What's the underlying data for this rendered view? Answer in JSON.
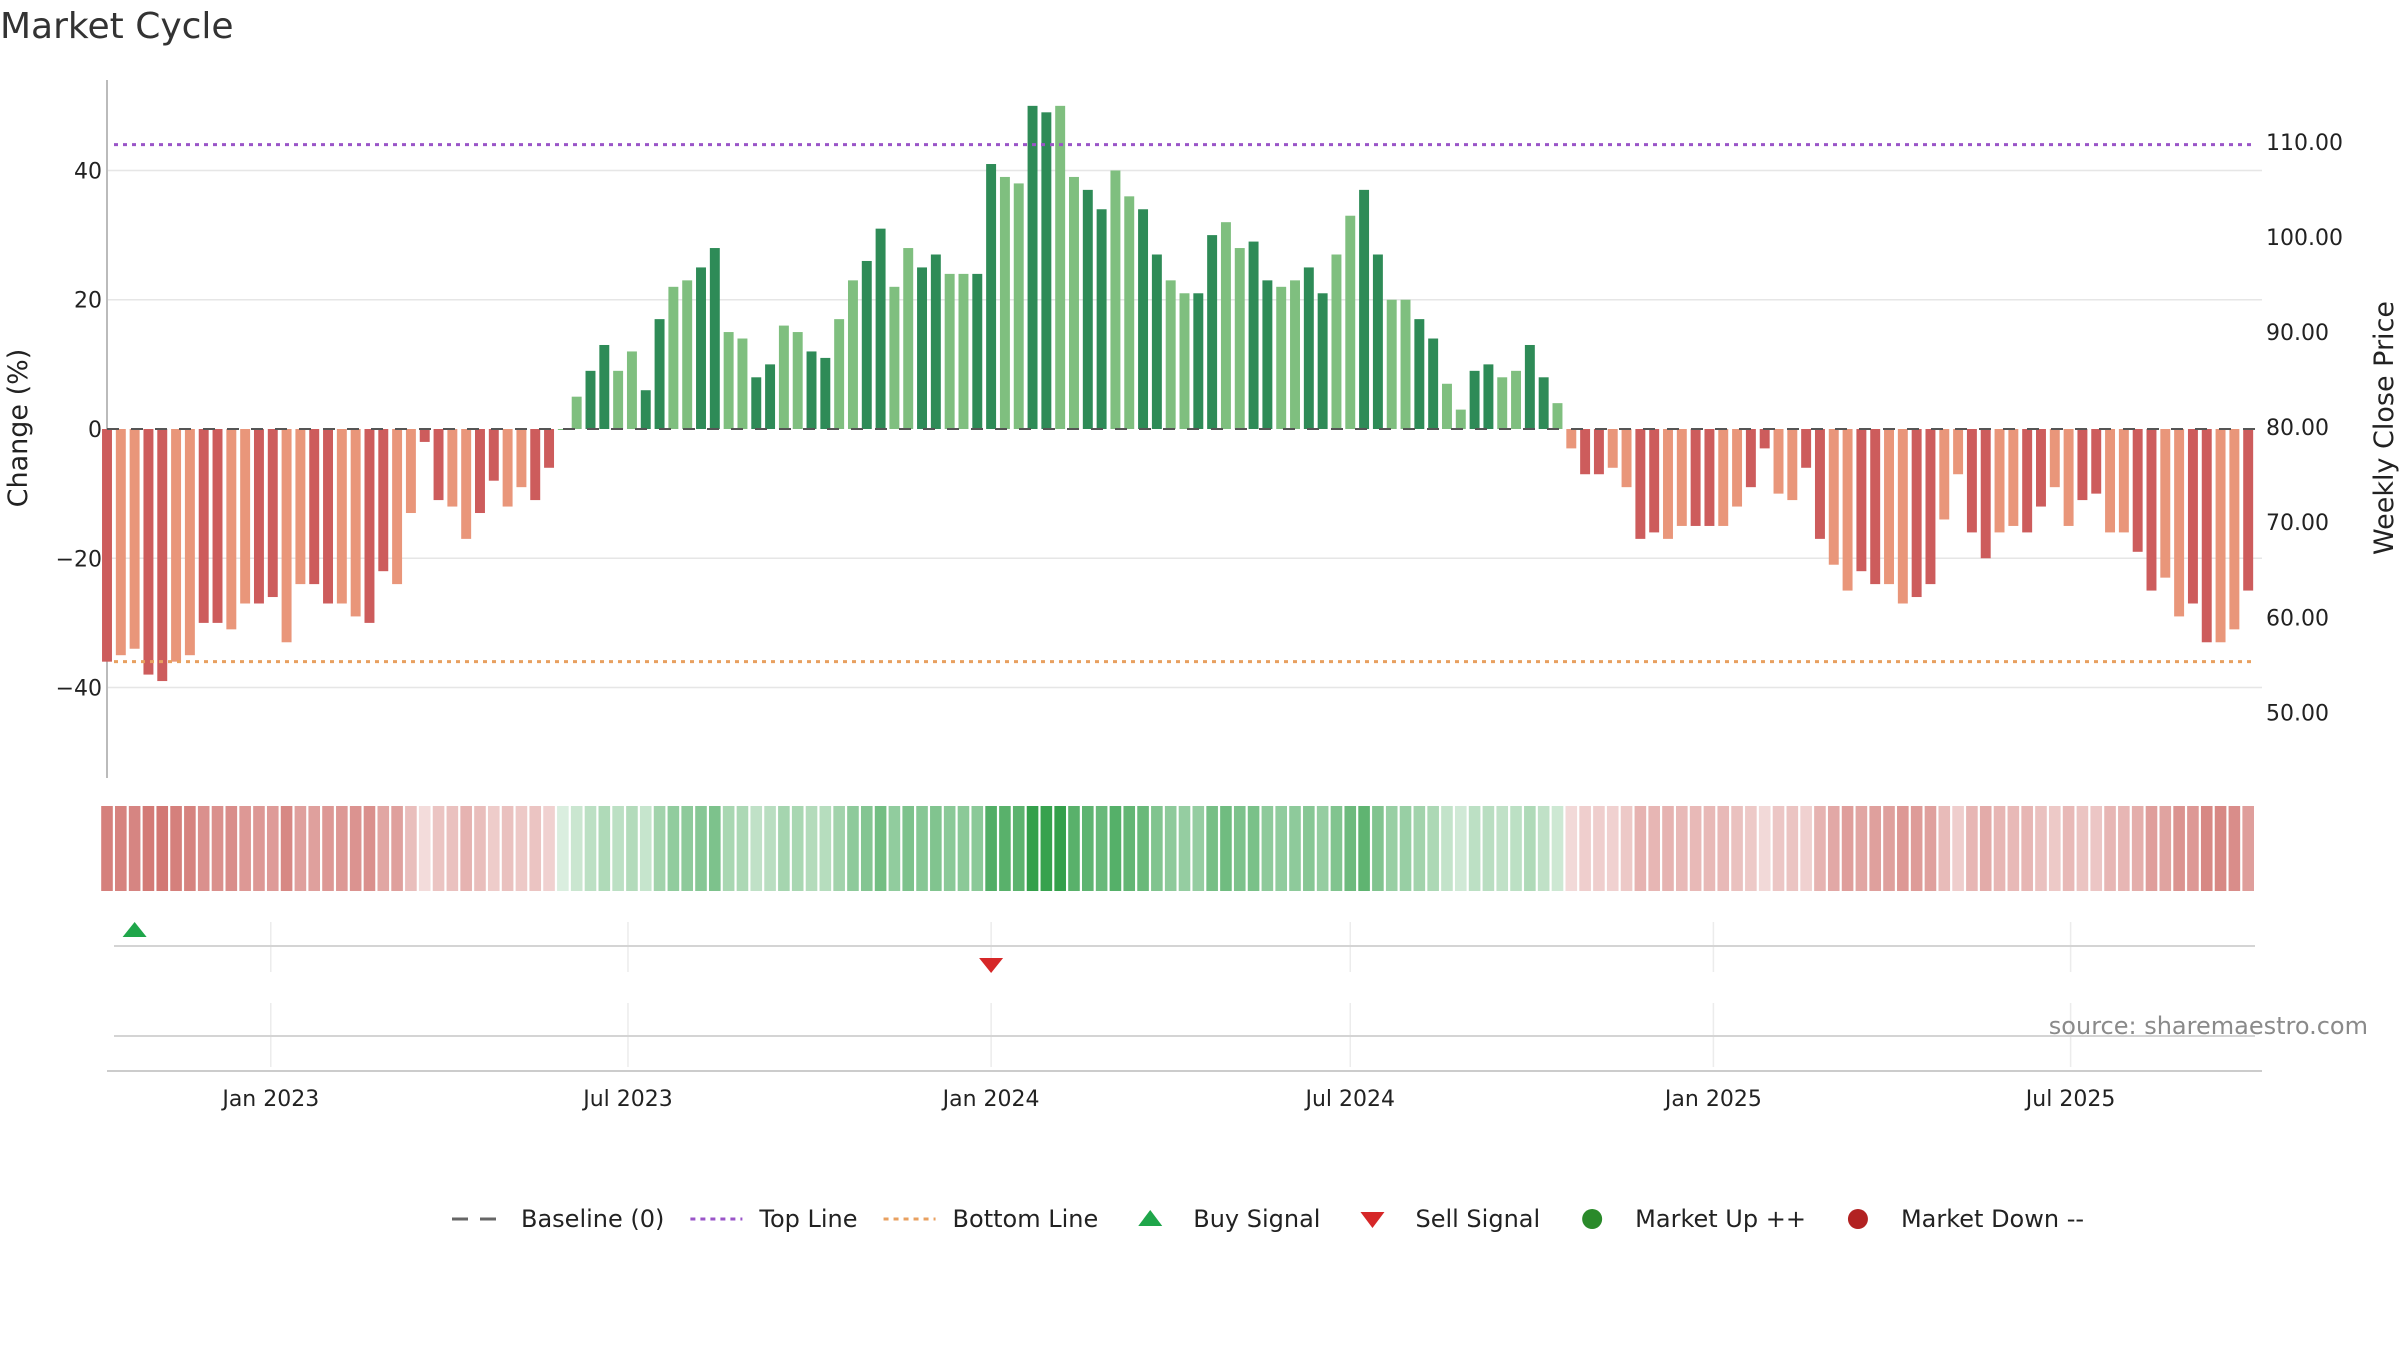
{
  "chart_data": {
    "type": "bar",
    "title": "Market Cycle",
    "ylabel_left": "Change (%)",
    "ylabel_right": "Weekly Close Price",
    "source": "source: sharemaestro.com",
    "ylim_left": [
      -54,
      54
    ],
    "ylim_right": [
      43.1,
      116.5
    ],
    "yticks_left": [
      {
        "v": 40,
        "label": "40"
      },
      {
        "v": 20,
        "label": "20"
      },
      {
        "v": 0,
        "label": "0"
      },
      {
        "v": -20,
        "label": "−20"
      },
      {
        "v": -40,
        "label": "−40"
      }
    ],
    "yticks_right": [
      {
        "v": 110,
        "label": "110.00"
      },
      {
        "v": 100,
        "label": "100.00"
      },
      {
        "v": 90,
        "label": "90.00"
      },
      {
        "v": 80,
        "label": "80.00"
      },
      {
        "v": 70,
        "label": "70.00"
      },
      {
        "v": 60,
        "label": "60.00"
      },
      {
        "v": 50,
        "label": "50.00"
      }
    ],
    "x_start": "2022-10-10",
    "x_end": "2025-10-06",
    "xticks": [
      {
        "date": "2023-01-01",
        "label": "Jan 2023"
      },
      {
        "date": "2023-07-01",
        "label": "Jul 2023"
      },
      {
        "date": "2024-01-01",
        "label": "Jan 2024"
      },
      {
        "date": "2024-07-01",
        "label": "Jul 2024"
      },
      {
        "date": "2025-01-01",
        "label": "Jan 2025"
      },
      {
        "date": "2025-07-01",
        "label": "Jul 2025"
      }
    ],
    "top_line": 44,
    "bottom_line": -36,
    "first_week": "2022-10-10",
    "weekly_change": [
      -36,
      -35,
      -34,
      -38,
      -39,
      -36,
      -35,
      -30,
      -30,
      -31,
      -27,
      -27,
      -26,
      -33,
      -24,
      -24,
      -27,
      -27,
      -29,
      -30,
      -22,
      -24,
      -13,
      -2,
      -11,
      -12,
      -17,
      -13,
      -8,
      -12,
      -9,
      -11,
      -6,
      0,
      5,
      9,
      13,
      9,
      12,
      6,
      17,
      22,
      23,
      25,
      28,
      15,
      14,
      8,
      10,
      16,
      15,
      12,
      11,
      17,
      23,
      26,
      31,
      22,
      28,
      25,
      27,
      24,
      24,
      24,
      41,
      39,
      38,
      50,
      49,
      50,
      39,
      37,
      34,
      40,
      36,
      34,
      27,
      23,
      21,
      21,
      30,
      32,
      28,
      29,
      23,
      22,
      23,
      25,
      21,
      27,
      33,
      37,
      27,
      20,
      20,
      17,
      14,
      7,
      3,
      9,
      10,
      8,
      9,
      13,
      8,
      4,
      -3,
      -7,
      -7,
      -6,
      -9,
      -17,
      -16,
      -17,
      -15,
      -15,
      -15,
      -15,
      -12,
      -9,
      -3,
      -10,
      -11,
      -6,
      -17,
      -21,
      -25,
      -22,
      -24,
      -24,
      -27,
      -26,
      -24,
      -14,
      -7,
      -16,
      -20,
      -16,
      -15,
      -16,
      -12,
      -9,
      -15,
      -11,
      -10,
      -16,
      -16,
      -19,
      -25,
      -23,
      -29,
      -27,
      -33,
      -33,
      -31,
      -25
    ],
    "buy_signals": [
      "2022-10-24"
    ],
    "sell_signals": [
      "2024-01-01"
    ],
    "legend": [
      {
        "label": "Baseline (0)",
        "marker": "dashed-line",
        "color": "#666666"
      },
      {
        "label": "Top Line",
        "marker": "dotted-line",
        "color": "#9a55c8"
      },
      {
        "label": "Bottom Line",
        "marker": "dotted-line",
        "color": "#e8a060"
      },
      {
        "label": "Buy Signal",
        "marker": "triangle-up",
        "color": "#1fa64a"
      },
      {
        "label": "Sell Signal",
        "marker": "triangle-down",
        "color": "#d62728"
      },
      {
        "label": "Market Up ++",
        "marker": "circle",
        "color": "#2a8a2a"
      },
      {
        "label": "Market Down --",
        "marker": "circle",
        "color": "#b22222"
      }
    ],
    "colors": {
      "up_strong": "#2e8b57",
      "up_light": "#7fbf7f",
      "down_strong": "#cd5c5c",
      "down_light": "#e9967a",
      "top_line": "#9a55c8",
      "bottom_line": "#e8a060",
      "buy": "#1fa64a",
      "sell": "#d62728",
      "grid": "#e6e6e6"
    }
  }
}
